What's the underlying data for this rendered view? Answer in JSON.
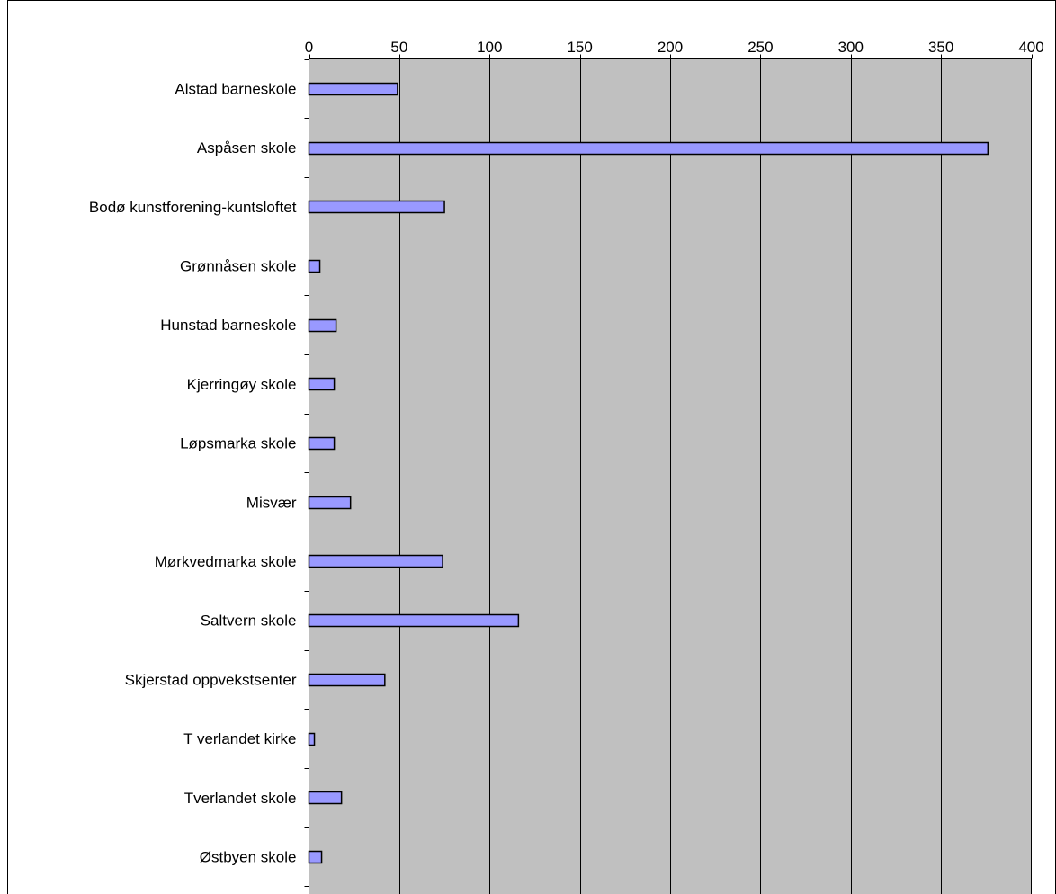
{
  "chart_data": {
    "type": "bar",
    "orientation": "horizontal",
    "categories": [
      "Alstad barneskole",
      "Aspåsen skole",
      "Bodø kunstforening-kuntsloftet",
      "Grønnåsen skole",
      "Hunstad barneskole",
      "Kjerringøy skole",
      "Løpsmarka skole",
      "Misvær",
      "Mørkvedmarka skole",
      "Saltvern skole",
      "Skjerstad oppvekstsenter",
      "T verlandet kirke",
      "Tverlandet skole",
      "Østbyen skole"
    ],
    "values": [
      49,
      376,
      75,
      6,
      15,
      14,
      14,
      23,
      74,
      116,
      42,
      3,
      18,
      7
    ],
    "title": "",
    "xlabel": "",
    "ylabel": "",
    "xlim": [
      0,
      400
    ],
    "x_ticks": [
      0,
      50,
      100,
      150,
      200,
      250,
      300,
      350,
      400
    ],
    "x_tick_labels": [
      "0",
      "50",
      "100",
      "150",
      "200",
      "250",
      "300",
      "350",
      "400"
    ],
    "x_axis_position": "top",
    "grid": true,
    "legend": "none",
    "colors": {
      "bar_fill": "#9999ff",
      "bar_stroke": "#000000",
      "plot_background": "#c0c0c0",
      "gridline": "#000000"
    }
  }
}
